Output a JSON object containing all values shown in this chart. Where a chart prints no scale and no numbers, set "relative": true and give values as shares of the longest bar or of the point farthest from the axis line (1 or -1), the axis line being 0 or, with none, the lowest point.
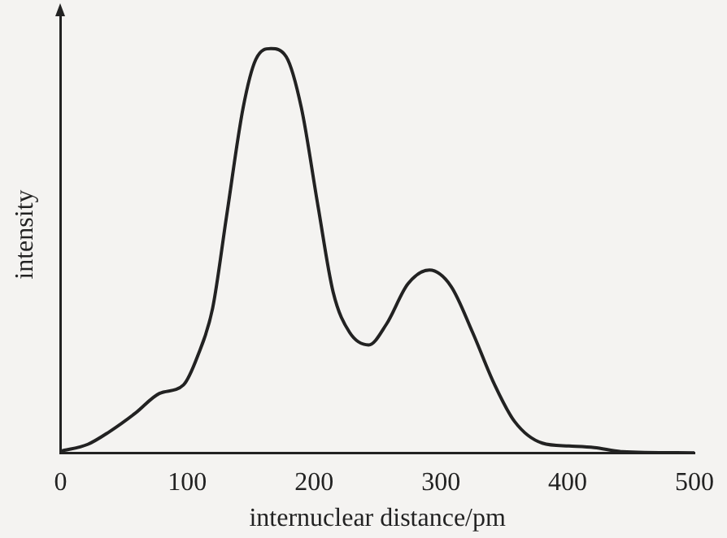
{
  "chart_data": {
    "type": "line",
    "xlabel": "internuclear distance/pm",
    "ylabel": "intensity",
    "relative": true,
    "tick_labels": "x",
    "grid": false,
    "legend": false,
    "marker": "none",
    "line_style": "solid",
    "xlim": [
      0,
      500
    ],
    "xticks": [
      0,
      100,
      200,
      300,
      400,
      500
    ],
    "series": [
      {
        "color": "#222222",
        "x": [
          0,
          21.5,
          38,
          59,
          78,
          97,
          108,
          120,
          131,
          144,
          154,
          166,
          178,
          190,
          203,
          215,
          228,
          243,
          257,
          274,
          291,
          308,
          325,
          342,
          358,
          380,
          401,
          421,
          443,
          500
        ],
        "values": [
          0.004,
          0.021,
          0.051,
          0.098,
          0.147,
          0.168,
          0.238,
          0.358,
          0.586,
          0.853,
          0.973,
          1,
          0.98,
          0.853,
          0.612,
          0.398,
          0.298,
          0.267,
          0.318,
          0.418,
          0.452,
          0.412,
          0.298,
          0.171,
          0.078,
          0.024,
          0.017,
          0.013,
          0.003,
          0
        ]
      }
    ]
  }
}
